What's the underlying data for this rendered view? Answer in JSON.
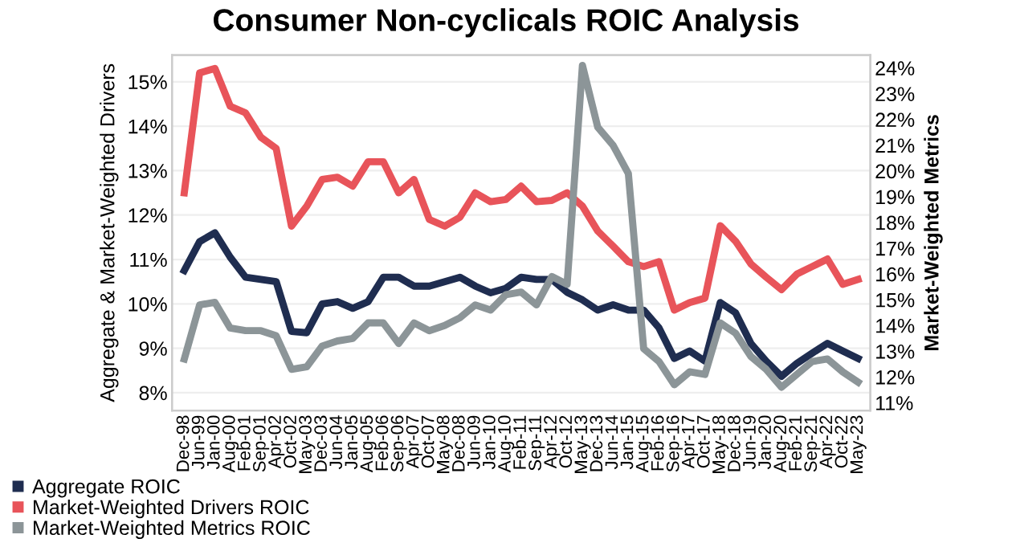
{
  "chart_data": {
    "type": "line",
    "title": "Consumer Non-cyclicals ROIC Analysis",
    "ylabel": "Aggregate & Market-Weighted Drivers",
    "y2label": "Market-Weighted Metrics",
    "categories": [
      "Dec-98",
      "Jun-99",
      "Jan-00",
      "Aug-00",
      "Feb-01",
      "Sep-01",
      "Apr-02",
      "Oct-02",
      "May-03",
      "Dec-03",
      "Jun-04",
      "Jan-05",
      "Aug-05",
      "Feb-06",
      "Sep-06",
      "Apr-07",
      "Oct-07",
      "May-08",
      "Dec-08",
      "Jun-09",
      "Jan-10",
      "Aug-10",
      "Feb-11",
      "Sep-11",
      "Apr-12",
      "Oct-12",
      "May-13",
      "Dec-13",
      "Jun-14",
      "Jan-15",
      "Aug-15",
      "Feb-16",
      "Sep-16",
      "Apr-17",
      "Oct-17",
      "May-18",
      "Dec-18",
      "Jun-19",
      "Jan-20",
      "Aug-20",
      "Feb-21",
      "Sep-21",
      "Apr-22",
      "Oct-22",
      "May-23"
    ],
    "series": [
      {
        "name": "Aggregate ROIC",
        "color": "#1f2d50",
        "values": [
          10.75,
          11.4,
          11.6,
          11.05,
          10.6,
          10.55,
          10.5,
          9.38,
          9.35,
          10.0,
          10.05,
          9.9,
          10.05,
          10.6,
          10.6,
          10.4,
          10.4,
          10.5,
          10.6,
          10.4,
          10.25,
          10.35,
          10.6,
          10.55,
          10.55,
          10.26,
          10.09,
          9.86,
          9.98,
          9.86,
          9.86,
          9.46,
          8.77,
          8.94,
          8.71,
          10.03,
          9.8,
          9.11,
          8.71,
          8.37,
          8.66,
          8.89,
          9.11,
          8.94,
          8.77
        ]
      },
      {
        "name": "Market-Weighted Drivers ROIC",
        "color": "#e8545a",
        "values": [
          12.5,
          15.2,
          15.3,
          14.45,
          14.3,
          13.75,
          13.5,
          11.75,
          12.2,
          12.8,
          12.85,
          12.65,
          13.2,
          13.2,
          12.5,
          12.8,
          11.9,
          11.75,
          11.95,
          12.5,
          12.3,
          12.35,
          12.65,
          12.3,
          12.33,
          12.5,
          12.2,
          11.64,
          11.3,
          10.95,
          10.84,
          10.95,
          9.86,
          10.03,
          10.13,
          11.76,
          11.41,
          10.9,
          10.6,
          10.32,
          10.67,
          10.84,
          11.01,
          10.44,
          10.55
        ]
      },
      {
        "name": "Market-Weighted Metrics ROIC",
        "color": "#8c9598",
        "axis": "y2",
        "values": [
          12.7,
          14.8,
          14.9,
          13.9,
          13.8,
          13.8,
          13.6,
          12.3,
          12.4,
          13.2,
          13.4,
          13.5,
          14.1,
          14.1,
          13.3,
          14.1,
          13.8,
          14.0,
          14.3,
          14.8,
          14.6,
          15.2,
          15.3,
          14.8,
          15.9,
          15.6,
          24.1,
          21.7,
          21.0,
          19.9,
          13.1,
          12.6,
          11.7,
          12.2,
          12.1,
          14.1,
          13.7,
          12.8,
          12.3,
          11.6,
          12.1,
          12.6,
          12.7,
          12.2,
          11.8
        ]
      }
    ],
    "ylim": [
      7.6,
      15.6
    ],
    "yticks": [
      {
        "value": 8,
        "label": "8%"
      },
      {
        "value": 9,
        "label": "9%"
      },
      {
        "value": 10,
        "label": "10%"
      },
      {
        "value": 11,
        "label": "11%"
      },
      {
        "value": 12,
        "label": "12%"
      },
      {
        "value": 13,
        "label": "13%"
      },
      {
        "value": 14,
        "label": "14%"
      },
      {
        "value": 15,
        "label": "15%"
      }
    ],
    "y2lim": [
      10.7,
      24.5
    ],
    "y2ticks": [
      {
        "value": 11,
        "label": "11%"
      },
      {
        "value": 12,
        "label": "12%"
      },
      {
        "value": 13,
        "label": "13%"
      },
      {
        "value": 14,
        "label": "14%"
      },
      {
        "value": 15,
        "label": "15%"
      },
      {
        "value": 16,
        "label": "16%"
      },
      {
        "value": 17,
        "label": "17%"
      },
      {
        "value": 18,
        "label": "18%"
      },
      {
        "value": 19,
        "label": "19%"
      },
      {
        "value": 20,
        "label": "20%"
      },
      {
        "value": 21,
        "label": "21%"
      },
      {
        "value": 22,
        "label": "22%"
      },
      {
        "value": 23,
        "label": "23%"
      },
      {
        "value": 24,
        "label": "24%"
      }
    ],
    "grid": "y",
    "legend": "bottom left",
    "marker": "none",
    "line_style": "solid"
  }
}
